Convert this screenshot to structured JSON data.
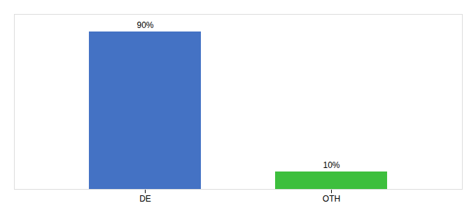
{
  "chart_data": {
    "type": "bar",
    "categories": [
      "DE",
      "OTH"
    ],
    "values": [
      90,
      10
    ],
    "value_labels": [
      "90%",
      "10%"
    ],
    "colors": [
      "#4472c4",
      "#3dbf3d"
    ],
    "ylim": [
      0,
      100
    ],
    "data_labels": true,
    "tick_labels": "x",
    "grid": false
  }
}
